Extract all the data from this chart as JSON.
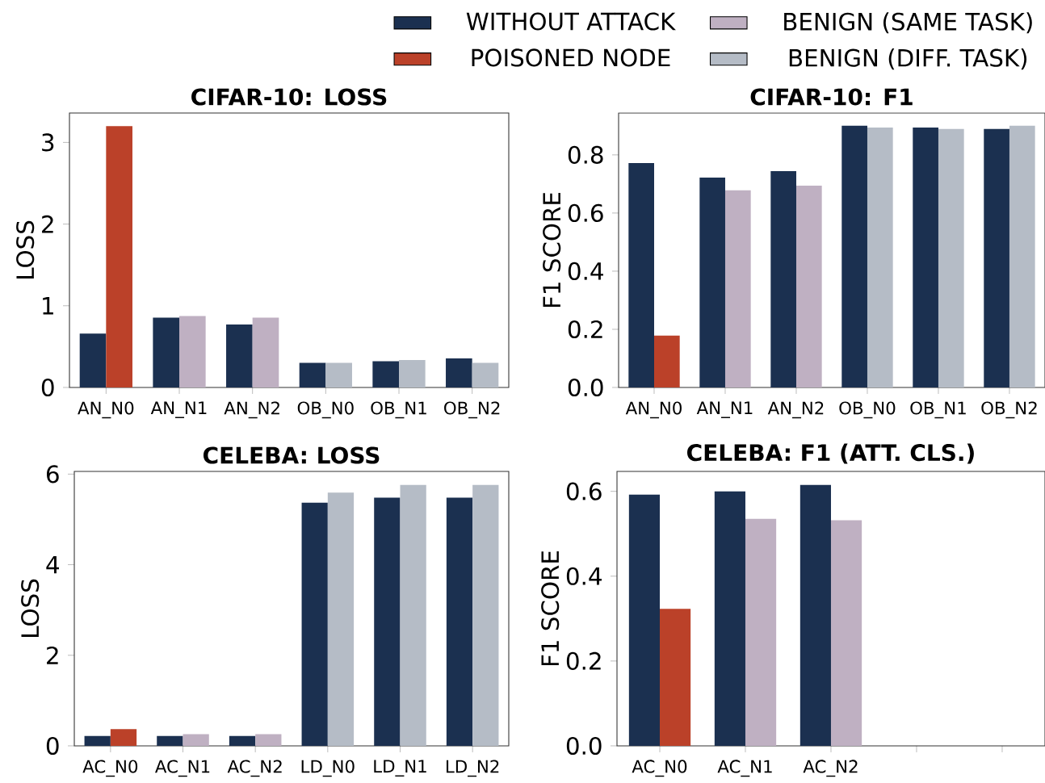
{
  "chart_data": [
    {
      "type": "bar",
      "title": "CIFAR-10: LOSS",
      "ylabel": "LOSS",
      "categories": [
        "AN_N0",
        "AN_N1",
        "AN_N2",
        "OB_N0",
        "OB_N1",
        "OB_N2"
      ],
      "ylim": [
        0,
        3.36
      ],
      "yticks": [
        0,
        1,
        2,
        3
      ],
      "legend": "top right",
      "series": [
        {
          "name": "WITHOUT ATTACK",
          "color": "#1b3050",
          "values": [
            0.66,
            0.855,
            0.77,
            0.3,
            0.32,
            0.355
          ]
        },
        {
          "name": "POISONED NODE",
          "color": "#bb4129",
          "values": [
            3.2,
            null,
            null,
            null,
            null,
            null
          ]
        },
        {
          "name": "BENIGN (SAME TASK)",
          "color": "#bfb0c2",
          "values": [
            null,
            0.875,
            0.855,
            null,
            null,
            null
          ]
        },
        {
          "name": "BENIGN (DIFF. TASK)",
          "color": "#b5bcc6",
          "values": [
            null,
            null,
            null,
            0.3,
            0.335,
            0.3
          ]
        }
      ]
    },
    {
      "type": "bar",
      "title": "CIFAR-10: F1",
      "ylabel": "F1 SCORE",
      "categories": [
        "AN_N0",
        "AN_N1",
        "AN_N2",
        "OB_N0",
        "OB_N1",
        "OB_N2"
      ],
      "ylim": [
        0,
        0.944
      ],
      "yticks": [
        {
          "value": 0,
          "label": "0.0"
        },
        0.2,
        0.4,
        0.6,
        0.8
      ],
      "series": [
        {
          "color": "#1b3050",
          "values": [
            0.772,
            0.722,
            0.744,
            0.9,
            0.894,
            0.889
          ]
        },
        {
          "color": "#bb4129",
          "values": [
            0.178,
            null,
            null,
            null,
            null,
            null
          ]
        },
        {
          "color": "#bfb0c2",
          "values": [
            null,
            0.678,
            0.694,
            null,
            null,
            null
          ]
        },
        {
          "color": "#b5bcc6",
          "values": [
            null,
            null,
            null,
            0.894,
            0.889,
            0.9
          ]
        }
      ]
    },
    {
      "type": "bar",
      "title": "CELEBA: LOSS",
      "ylabel": "LOSS",
      "categories": [
        "AC_N0",
        "AC_N1",
        "AC_N2",
        "LD_N0",
        "LD_N1",
        "LD_N2"
      ],
      "ylim": [
        0,
        6.06
      ],
      "yticks": [
        0,
        2,
        4,
        6
      ],
      "series": [
        {
          "color": "#1b3050",
          "values": [
            0.22,
            0.22,
            0.22,
            5.37,
            5.48,
            5.48
          ]
        },
        {
          "color": "#bb4129",
          "values": [
            0.37,
            null,
            null,
            null,
            null,
            null
          ]
        },
        {
          "color": "#bfb0c2",
          "values": [
            null,
            0.26,
            0.26,
            null,
            null,
            null
          ]
        },
        {
          "color": "#b5bcc6",
          "values": [
            null,
            null,
            null,
            5.59,
            5.76,
            5.76
          ]
        }
      ]
    },
    {
      "type": "bar",
      "title": "CELEBA: F1 (ATT. CLS.)",
      "ylabel": "F1 SCORE",
      "categories": [
        "AC_N0",
        "AC_N1",
        "AC_N2",
        null,
        null
      ],
      "ylim": [
        0,
        0.647
      ],
      "yticks": [
        {
          "value": 0,
          "label": "0.0"
        },
        0.2,
        0.4,
        0.6
      ],
      "series": [
        {
          "color": "#1b3050",
          "values": [
            0.592,
            0.6,
            0.615,
            null,
            null
          ]
        },
        {
          "color": "#bb4129",
          "values": [
            0.323,
            null,
            null,
            null,
            null
          ]
        },
        {
          "color": "#bfb0c2",
          "values": [
            null,
            0.535,
            0.532,
            null,
            null
          ]
        }
      ]
    }
  ]
}
